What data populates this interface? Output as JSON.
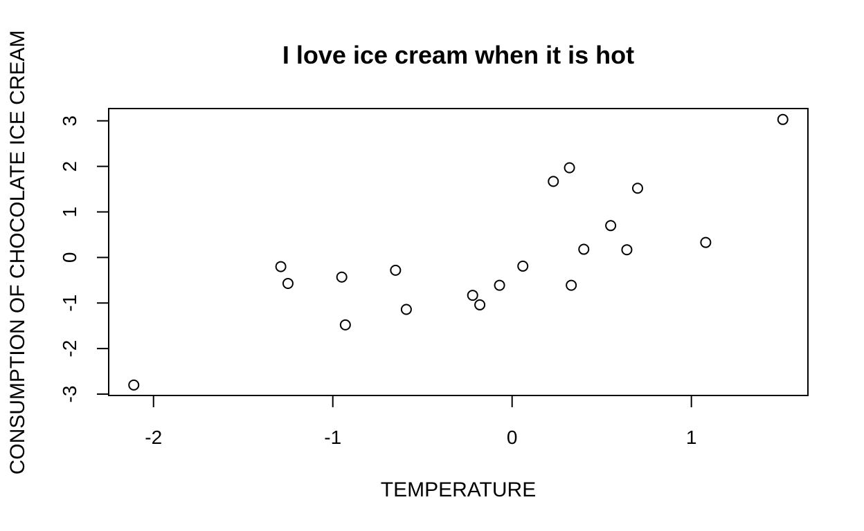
{
  "chart_data": {
    "type": "scatter",
    "title": "I love ice cream when it is hot",
    "xlabel": "TEMPERATURE",
    "ylabel": "CONSUMPTION OF CHOCOLATE ICE CREAM",
    "xlim": [
      -2.25,
      1.65
    ],
    "ylim": [
      -3.03,
      3.27
    ],
    "xticks": [
      -2,
      -1,
      0,
      1
    ],
    "xtick_labels": [
      "-2",
      "-1",
      "0",
      "1"
    ],
    "yticks": [
      -3,
      -2,
      -1,
      0,
      1,
      2,
      3
    ],
    "ytick_labels": [
      "-3",
      "-2",
      "-1",
      "0",
      "1",
      "2",
      "3"
    ],
    "grid": false,
    "marker": "open-circle",
    "colors": {
      "stroke": "#000000",
      "fill": "#ffffff",
      "text": "#000000"
    },
    "series": [
      {
        "x": [
          -2.11,
          -1.29,
          -1.25,
          -0.95,
          -0.93,
          -0.65,
          -0.59,
          -0.22,
          -0.18,
          -0.07,
          0.06,
          0.23,
          0.32,
          0.33,
          0.4,
          0.55,
          0.64,
          0.7,
          1.08,
          1.51
        ],
        "y": [
          -2.8,
          -0.2,
          -0.57,
          -0.43,
          -1.48,
          -0.28,
          -1.14,
          -0.83,
          -1.04,
          -0.61,
          -0.19,
          1.67,
          1.97,
          -0.61,
          0.18,
          0.7,
          0.17,
          1.52,
          0.33,
          3.03
        ]
      }
    ]
  }
}
